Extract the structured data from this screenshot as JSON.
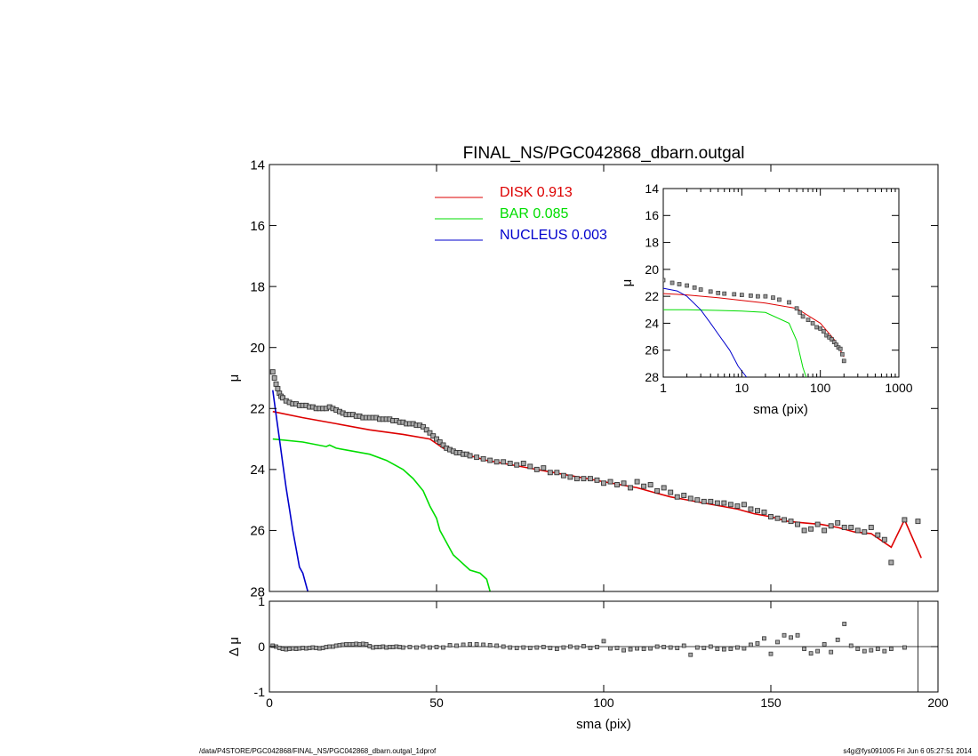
{
  "footer": {
    "path": "/data/P4STORE/PGC042868/FINAL_NS/PGC042868_dbarn.outgal_1dprof",
    "stamp": "s4g@fys091005  Fri Jun  6 05:27:51 2014"
  },
  "chart_data": [
    {
      "id": "main",
      "type": "line",
      "title": "FINAL_NS/PGC042868_dbarn.outgal",
      "ylabel": "μ",
      "xlim": [
        0,
        200
      ],
      "ylim": [
        28,
        14
      ],
      "y_inverted": true,
      "xticks": [
        0,
        50,
        100,
        150,
        200
      ],
      "yticks": [
        14,
        16,
        18,
        20,
        22,
        24,
        26,
        28
      ],
      "legend": {
        "placement": "top-center",
        "entries": [
          {
            "name": "DISK",
            "value": "0.913",
            "color": "#dd0000"
          },
          {
            "name": "BAR",
            "value": "0.085",
            "color": "#00dd00"
          },
          {
            "name": "NUCLEUS",
            "value": "0.003",
            "color": "#0000cc"
          }
        ]
      },
      "series": [
        {
          "name": "DISK",
          "color": "#dd0000",
          "x": [
            1,
            10,
            20,
            30,
            40,
            48,
            52,
            56,
            60,
            65,
            70,
            75,
            80,
            85,
            90,
            95,
            100,
            105,
            110,
            115,
            120,
            125,
            130,
            135,
            140,
            145,
            150,
            155,
            160,
            165,
            170,
            175,
            180,
            186,
            190,
            195
          ],
          "y": [
            22.1,
            22.3,
            22.5,
            22.7,
            22.85,
            23.0,
            23.3,
            23.45,
            23.55,
            23.7,
            23.8,
            23.9,
            24.0,
            24.1,
            24.2,
            24.3,
            24.4,
            24.5,
            24.6,
            24.75,
            24.9,
            25.0,
            25.1,
            25.2,
            25.3,
            25.45,
            25.55,
            25.7,
            25.75,
            25.8,
            25.9,
            26.05,
            26.1,
            26.55,
            25.65,
            26.9
          ]
        },
        {
          "name": "BAR",
          "color": "#00dd00",
          "x": [
            1,
            10,
            17,
            18,
            20,
            25,
            30,
            35,
            40,
            43,
            46,
            48,
            50,
            51,
            53,
            55,
            57,
            60,
            63,
            65,
            66
          ],
          "y": [
            23.0,
            23.1,
            23.25,
            23.2,
            23.3,
            23.4,
            23.5,
            23.7,
            24.0,
            24.3,
            24.7,
            25.2,
            25.6,
            26.0,
            26.4,
            26.8,
            27.0,
            27.3,
            27.4,
            27.6,
            28.0
          ]
        },
        {
          "name": "NUCLEUS",
          "color": "#0000cc",
          "x": [
            1,
            2,
            3,
            4,
            5,
            6,
            7,
            8,
            9,
            10,
            11.5
          ],
          "y": [
            21.4,
            22.2,
            23.0,
            23.8,
            24.6,
            25.3,
            26.0,
            26.6,
            27.2,
            27.4,
            28.0
          ]
        },
        {
          "name": "data",
          "marker": "square",
          "color": "#000000",
          "x": [
            1,
            1.5,
            2,
            2.5,
            3,
            3.5,
            4,
            5,
            6,
            7,
            8,
            9,
            10,
            11,
            12,
            13,
            14,
            15,
            16,
            17,
            18,
            19,
            20,
            21,
            22,
            23,
            24,
            25,
            26,
            27,
            28,
            29,
            30,
            31,
            32,
            33,
            34,
            35,
            36,
            37,
            38,
            39,
            40,
            41,
            42,
            43,
            44,
            45,
            46,
            47,
            48,
            49,
            50,
            51,
            52,
            53,
            54,
            55,
            56,
            57,
            58,
            59,
            60,
            62,
            64,
            66,
            68,
            70,
            72,
            74,
            76,
            78,
            80,
            82,
            84,
            86,
            88,
            90,
            92,
            94,
            96,
            98,
            100,
            102,
            104,
            106,
            108,
            110,
            112,
            114,
            116,
            118,
            120,
            122,
            124,
            126,
            128,
            130,
            132,
            134,
            136,
            138,
            140,
            142,
            144,
            146,
            148,
            150,
            152,
            154,
            156,
            158,
            160,
            162,
            164,
            166,
            168,
            170,
            172,
            174,
            176,
            178,
            180,
            182,
            184,
            186,
            190,
            194
          ],
          "y": [
            20.8,
            21.0,
            21.2,
            21.35,
            21.5,
            21.6,
            21.65,
            21.75,
            21.8,
            21.85,
            21.85,
            21.9,
            21.9,
            21.9,
            21.95,
            21.95,
            22.0,
            22.0,
            22.0,
            22.0,
            21.95,
            22.0,
            22.05,
            22.1,
            22.15,
            22.2,
            22.2,
            22.2,
            22.25,
            22.25,
            22.3,
            22.3,
            22.3,
            22.3,
            22.3,
            22.35,
            22.35,
            22.35,
            22.35,
            22.4,
            22.4,
            22.45,
            22.45,
            22.5,
            22.5,
            22.5,
            22.55,
            22.55,
            22.6,
            22.7,
            22.8,
            22.9,
            23.0,
            23.1,
            23.2,
            23.3,
            23.35,
            23.4,
            23.45,
            23.45,
            23.5,
            23.5,
            23.55,
            23.6,
            23.65,
            23.7,
            23.75,
            23.75,
            23.8,
            23.85,
            23.8,
            23.9,
            24.0,
            23.95,
            24.1,
            24.1,
            24.2,
            24.25,
            24.3,
            24.3,
            24.3,
            24.35,
            24.45,
            24.4,
            24.5,
            24.45,
            24.6,
            24.4,
            24.55,
            24.5,
            24.7,
            24.6,
            24.75,
            24.9,
            24.85,
            24.95,
            25.0,
            25.05,
            25.05,
            25.1,
            25.1,
            25.15,
            25.2,
            25.15,
            25.3,
            25.35,
            25.4,
            25.55,
            25.6,
            25.65,
            25.7,
            25.8,
            26.0,
            25.95,
            25.8,
            26.0,
            25.85,
            25.75,
            25.9,
            25.9,
            26.0,
            26.05,
            25.9,
            26.15,
            26.3,
            27.05,
            25.65,
            25.7
          ]
        }
      ]
    },
    {
      "id": "inset",
      "type": "line",
      "xlabel": "sma (pix)",
      "ylabel": "μ",
      "x_scale": "log",
      "xlim": [
        1,
        1000
      ],
      "ylim": [
        28,
        14
      ],
      "y_inverted": true,
      "xticks": [
        1,
        10,
        100,
        1000
      ],
      "yticks": [
        14,
        16,
        18,
        20,
        22,
        24,
        26,
        28
      ],
      "series": [
        {
          "name": "DISK",
          "color": "#dd0000",
          "x": [
            1,
            2,
            5,
            10,
            20,
            50,
            100,
            150,
            200
          ],
          "y": [
            21.8,
            21.9,
            22.1,
            22.3,
            22.5,
            22.9,
            24.0,
            25.2,
            26.5
          ]
        },
        {
          "name": "BAR",
          "color": "#00dd00",
          "x": [
            1,
            2,
            5,
            10,
            20,
            40,
            50,
            60,
            66
          ],
          "y": [
            23.0,
            23.0,
            23.05,
            23.1,
            23.2,
            24.0,
            25.3,
            27.3,
            28.0
          ]
        },
        {
          "name": "NUCLEUS",
          "color": "#0000cc",
          "x": [
            1,
            1.5,
            2,
            3,
            4,
            5,
            7,
            9,
            11.5
          ],
          "y": [
            21.4,
            21.6,
            22.0,
            23.0,
            24.0,
            24.8,
            26.0,
            27.2,
            28.0
          ]
        },
        {
          "name": "data",
          "marker": "square",
          "color": "#000000",
          "x": [
            1,
            1.3,
            1.6,
            2,
            2.5,
            3,
            4,
            5,
            6,
            8,
            10,
            13,
            16,
            20,
            25,
            30,
            40,
            50,
            55,
            60,
            70,
            80,
            90,
            100,
            110,
            120,
            130,
            140,
            150,
            160,
            170,
            180,
            190,
            200
          ],
          "y": [
            20.8,
            21.0,
            21.1,
            21.2,
            21.35,
            21.5,
            21.65,
            21.75,
            21.8,
            21.85,
            21.9,
            21.95,
            22.0,
            22.0,
            22.1,
            22.25,
            22.45,
            22.9,
            23.2,
            23.5,
            23.75,
            24.0,
            24.3,
            24.4,
            24.6,
            24.9,
            25.05,
            25.2,
            25.4,
            25.6,
            25.8,
            25.9,
            26.3,
            26.8
          ]
        }
      ]
    },
    {
      "id": "residual",
      "type": "scatter",
      "xlabel": "sma (pix)",
      "ylabel": "Δ μ",
      "xlim": [
        0,
        200
      ],
      "ylim": [
        -1,
        1
      ],
      "xticks": [
        0,
        50,
        100,
        150,
        200
      ],
      "yticks": [
        -1,
        0,
        1
      ],
      "reference_lines": {
        "y": 0,
        "x": 194
      },
      "series": [
        {
          "name": "residual",
          "marker": "square",
          "color": "#000000",
          "x": [
            1,
            2,
            3,
            4,
            5,
            6,
            7,
            8,
            9,
            10,
            11,
            12,
            13,
            14,
            15,
            16,
            17,
            18,
            19,
            20,
            21,
            22,
            23,
            24,
            25,
            26,
            27,
            28,
            29,
            30,
            31,
            32,
            33,
            34,
            35,
            36,
            37,
            38,
            39,
            40,
            42,
            44,
            46,
            48,
            50,
            52,
            54,
            56,
            58,
            60,
            62,
            64,
            66,
            68,
            70,
            72,
            74,
            76,
            78,
            80,
            82,
            84,
            86,
            88,
            90,
            92,
            94,
            96,
            98,
            100,
            102,
            104,
            106,
            108,
            110,
            112,
            114,
            116,
            118,
            120,
            122,
            124,
            126,
            128,
            130,
            132,
            134,
            136,
            138,
            140,
            142,
            144,
            146,
            148,
            150,
            152,
            154,
            156,
            158,
            160,
            162,
            164,
            166,
            168,
            170,
            172,
            174,
            176,
            178,
            180,
            182,
            184,
            186,
            190
          ],
          "y": [
            0.02,
            0.0,
            -0.03,
            -0.05,
            -0.06,
            -0.05,
            -0.04,
            -0.05,
            -0.04,
            -0.03,
            -0.04,
            -0.03,
            -0.02,
            -0.03,
            -0.04,
            -0.03,
            -0.01,
            0.0,
            0.0,
            0.02,
            0.03,
            0.04,
            0.05,
            0.05,
            0.05,
            0.06,
            0.05,
            0.06,
            0.05,
            0.01,
            -0.02,
            -0.01,
            -0.01,
            0.0,
            -0.02,
            -0.01,
            -0.01,
            0.0,
            -0.01,
            -0.02,
            -0.01,
            -0.02,
            0.0,
            -0.02,
            -0.01,
            -0.02,
            0.03,
            0.02,
            0.04,
            0.05,
            0.05,
            0.04,
            0.03,
            0.02,
            0.0,
            -0.02,
            -0.03,
            -0.02,
            -0.03,
            -0.02,
            -0.01,
            -0.03,
            -0.05,
            -0.02,
            0.0,
            -0.02,
            0.01,
            -0.03,
            -0.01,
            0.12,
            -0.04,
            -0.03,
            -0.08,
            -0.06,
            -0.04,
            -0.05,
            -0.04,
            0.0,
            -0.01,
            -0.02,
            -0.03,
            0.02,
            -0.18,
            -0.02,
            -0.03,
            0.0,
            -0.05,
            -0.06,
            -0.05,
            -0.02,
            -0.04,
            0.04,
            0.07,
            0.18,
            -0.16,
            0.1,
            0.25,
            0.2,
            0.25,
            -0.05,
            -0.15,
            -0.1,
            0.05,
            -0.12,
            0.15,
            0.5,
            0.02,
            -0.05,
            -0.1,
            -0.08,
            -0.05,
            -0.1,
            -0.05,
            -0.02
          ]
        }
      ]
    }
  ]
}
